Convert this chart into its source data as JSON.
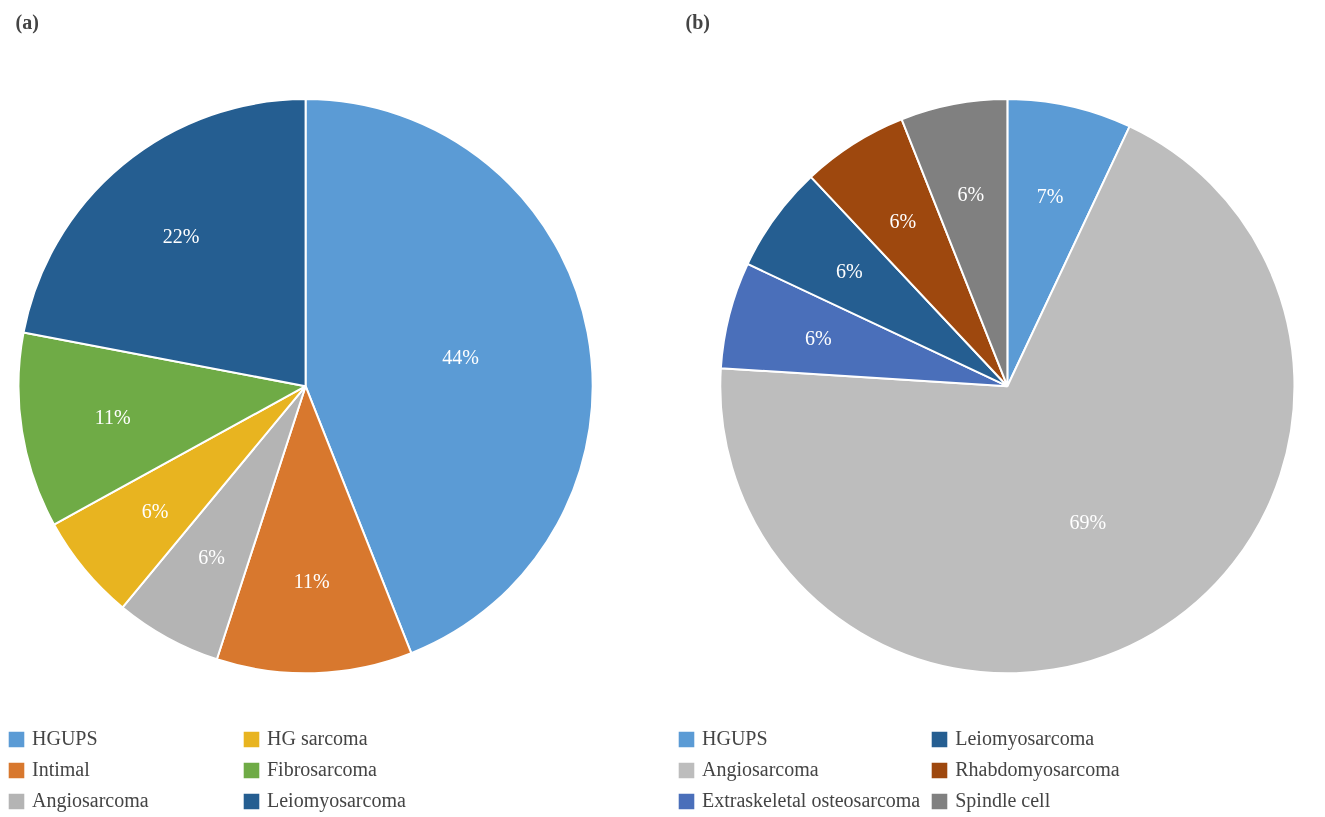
{
  "chart_data": [
    {
      "type": "pie",
      "title": "(a)",
      "categories": [
        "HGUPS",
        "Intimal",
        "Angiosarcoma",
        "HG sarcoma",
        "Fibrosarcoma",
        "Leiomyosarcoma"
      ],
      "values": [
        44,
        11,
        6,
        6,
        11,
        22
      ],
      "colors": [
        "#5b9bd5",
        "#d8782e",
        "#b4b4b4",
        "#e8b420",
        "#6fab46",
        "#255e91"
      ],
      "value_labels": [
        "44%",
        "11%",
        "6%",
        "6%",
        "11%",
        "22%"
      ],
      "legend": "bottom"
    },
    {
      "type": "pie",
      "title": "(b)",
      "categories": [
        "HGUPS",
        "Angiosarcoma",
        "Extraskeletal osteosarcoma",
        "Leiomyosarcoma",
        "Rhabdomyosarcoma",
        "Spindle cell"
      ],
      "values": [
        7,
        69,
        6,
        6,
        6,
        6
      ],
      "colors": [
        "#5b9bd5",
        "#bdbdbd",
        "#4a6fba",
        "#255e91",
        "#9e480e",
        "#808080"
      ],
      "value_labels": [
        "7%",
        "69%",
        "6%",
        "6%",
        "6%",
        "6%"
      ],
      "legend": "bottom"
    }
  ]
}
